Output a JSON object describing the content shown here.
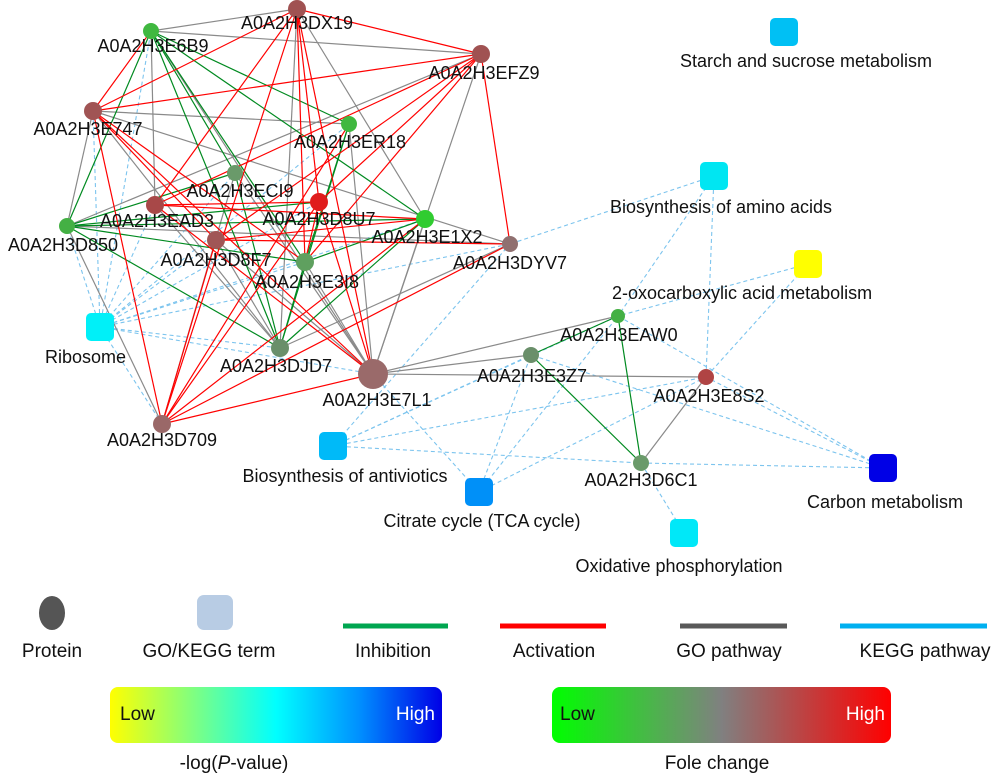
{
  "proteins": [
    {
      "id": "A0A2H3DX19",
      "color": "#a05252"
    },
    {
      "id": "A0A2H3E6B9",
      "color": "#40b840"
    },
    {
      "id": "A0A2H3EFZ9",
      "color": "#a05252"
    },
    {
      "id": "A0A2H3E747",
      "color": "#a05454"
    },
    {
      "id": "A0A2H3ER18",
      "color": "#40b840"
    },
    {
      "id": "A0A2H3ECI9",
      "color": "#6a9a6a"
    },
    {
      "id": "A0A2H3D8U7",
      "color": "#e01c1c"
    },
    {
      "id": "A0A2H3EAD3",
      "color": "#a84848"
    },
    {
      "id": "A0A2H3D850",
      "color": "#44b044"
    },
    {
      "id": "A0A2H3E1X2",
      "color": "#30cc30"
    },
    {
      "id": "A0A2H3D8F7",
      "color": "#a05656"
    },
    {
      "id": "A0A2H3DYV7",
      "color": "#907070"
    },
    {
      "id": "A0A2H3E3I8",
      "color": "#5fa05f"
    },
    {
      "id": "A0A2H3DJD7",
      "color": "#6a8f6a"
    },
    {
      "id": "A0A2H3E7L1",
      "color": "#9a6a6a"
    },
    {
      "id": "A0A2H3D709",
      "color": "#9a6868"
    },
    {
      "id": "A0A2H3EAW0",
      "color": "#44b044"
    },
    {
      "id": "A0A2H3E3Z7",
      "color": "#6a8f6a"
    },
    {
      "id": "A0A2H3E8S2",
      "color": "#b04444"
    },
    {
      "id": "A0A2H3D6C1",
      "color": "#6a9a6a"
    }
  ],
  "terms": [
    {
      "id": "Starch and sucrose metabolism",
      "color": "#00c0f4"
    },
    {
      "id": "Biosynthesis of amino acids",
      "color": "#00e6f2"
    },
    {
      "id": "2-oxocarboxylic acid metabolism",
      "color": "#ffff00"
    },
    {
      "id": "Ribosome",
      "color": "#00f0f8"
    },
    {
      "id": "Biosynthesis of antiviotics",
      "color": "#00baf8"
    },
    {
      "id": "Citrate cycle (TCA cycle)",
      "color": "#0090f8"
    },
    {
      "id": "Oxidative phosphorylation",
      "color": "#00e8f8"
    },
    {
      "id": "Carbon metabolism",
      "color": "#0000e6"
    }
  ],
  "edges": {
    "activation": [
      [
        "A0A2H3DX19",
        "A0A2H3E747"
      ],
      [
        "A0A2H3DX19",
        "A0A2H3EAD3"
      ],
      [
        "A0A2H3DX19",
        "A0A2H3D8U7"
      ],
      [
        "A0A2H3DX19",
        "A0A2H3E7L1"
      ],
      [
        "A0A2H3DX19",
        "A0A2H3EFZ9"
      ],
      [
        "A0A2H3DX19",
        "A0A2H3E3I8"
      ],
      [
        "A0A2H3EFZ9",
        "A0A2H3E747"
      ],
      [
        "A0A2H3EFZ9",
        "A0A2H3D8F7"
      ],
      [
        "A0A2H3EFZ9",
        "A0A2H3DYV7"
      ],
      [
        "A0A2H3EFZ9",
        "A0A2H3D8U7"
      ],
      [
        "A0A2H3EFZ9",
        "A0A2H3E3I8"
      ],
      [
        "A0A2H3EFZ9",
        "A0A2H3EAD3"
      ],
      [
        "A0A2H3E747",
        "A0A2H3D8F7"
      ],
      [
        "A0A2H3E747",
        "A0A2H3E3I8"
      ],
      [
        "A0A2H3E747",
        "A0A2H3D709"
      ],
      [
        "A0A2H3E747",
        "A0A2H3E7L1"
      ],
      [
        "A0A2H3E6B9",
        "A0A2H3E747"
      ],
      [
        "A0A2H3EAD3",
        "A0A2H3D8U7"
      ],
      [
        "A0A2H3EAD3",
        "A0A2H3E1X2"
      ],
      [
        "A0A2H3EAD3",
        "A0A2H3E7L1"
      ],
      [
        "A0A2H3D8F7",
        "A0A2H3D709"
      ],
      [
        "A0A2H3D8F7",
        "A0A2H3E1X2"
      ],
      [
        "A0A2H3D8F7",
        "A0A2H3DYV7"
      ],
      [
        "A0A2H3D709",
        "A0A2H3D8U7"
      ],
      [
        "A0A2H3D709",
        "A0A2H3E1X2"
      ],
      [
        "A0A2H3D709",
        "A0A2H3ER18"
      ],
      [
        "A0A2H3D709",
        "A0A2H3E7L1"
      ],
      [
        "A0A2H3D709",
        "A0A2H3DYV7"
      ],
      [
        "A0A2H3D709",
        "A0A2H3DX19"
      ],
      [
        "A0A2H3D8U7",
        "A0A2H3E3I8"
      ],
      [
        "A0A2H3D8U7",
        "A0A2H3E7L1"
      ]
    ],
    "inhibition": [
      [
        "A0A2H3E6B9",
        "A0A2H3D850"
      ],
      [
        "A0A2H3E6B9",
        "A0A2H3ECI9"
      ],
      [
        "A0A2H3E6B9",
        "A0A2H3E3I8"
      ],
      [
        "A0A2H3E6B9",
        "A0A2H3DJD7"
      ],
      [
        "A0A2H3E6B9",
        "A0A2H3E1X2"
      ],
      [
        "A0A2H3E6B9",
        "A0A2H3ER18"
      ],
      [
        "A0A2H3D850",
        "A0A2H3E1X2"
      ],
      [
        "A0A2H3D850",
        "A0A2H3ECI9"
      ],
      [
        "A0A2H3D850",
        "A0A2H3DJD7"
      ],
      [
        "A0A2H3D850",
        "A0A2H3E3I8"
      ],
      [
        "A0A2H3D850",
        "A0A2H3D8U7"
      ],
      [
        "A0A2H3ER18",
        "A0A2H3E3I8"
      ],
      [
        "A0A2H3ER18",
        "A0A2H3DJD7"
      ],
      [
        "A0A2H3ECI9",
        "A0A2H3DJD7"
      ],
      [
        "A0A2H3E1X2",
        "A0A2H3DJD7"
      ],
      [
        "A0A2H3E1X2",
        "A0A2H3E3I8"
      ],
      [
        "A0A2H3E3I8",
        "A0A2H3DJD7"
      ],
      [
        "A0A2H3EAW0",
        "A0A2H3E3Z7"
      ],
      [
        "A0A2H3EAW0",
        "A0A2H3D6C1"
      ],
      [
        "A0A2H3E3Z7",
        "A0A2H3D6C1"
      ]
    ],
    "go": [
      [
        "A0A2H3DX19",
        "A0A2H3E6B9"
      ],
      [
        "A0A2H3E6B9",
        "A0A2H3EFZ9"
      ],
      [
        "A0A2H3E6B9",
        "A0A2H3EAD3"
      ],
      [
        "A0A2H3E6B9",
        "A0A2H3E7L1"
      ],
      [
        "A0A2H3E747",
        "A0A2H3D850"
      ],
      [
        "A0A2H3E747",
        "A0A2H3DYV7"
      ],
      [
        "A0A2H3E747",
        "A0A2H3ER18"
      ],
      [
        "A0A2H3E747",
        "A0A2H3DJD7"
      ],
      [
        "A0A2H3D850",
        "A0A2H3D709"
      ],
      [
        "A0A2H3D850",
        "A0A2H3DYV7"
      ],
      [
        "A0A2H3EAD3",
        "A0A2H3DJD7"
      ],
      [
        "A0A2H3D8F7",
        "A0A2H3E7L1"
      ],
      [
        "A0A2H3ECI9",
        "A0A2H3E7L1"
      ],
      [
        "A0A2H3E3I8",
        "A0A2H3E7L1"
      ],
      [
        "A0A2H3ER18",
        "A0A2H3E7L1"
      ],
      [
        "A0A2H3DX19",
        "A0A2H3E1X2"
      ],
      [
        "A0A2H3DX19",
        "A0A2H3DJD7"
      ],
      [
        "A0A2H3EFZ9",
        "A0A2H3E7L1"
      ],
      [
        "A0A2H3D709",
        "A0A2H3ECI9"
      ],
      [
        "A0A2H3DYV7",
        "A0A2H3DJD7"
      ],
      [
        "A0A2H3E1X2",
        "A0A2H3E7L1"
      ],
      [
        "A0A2H3EFZ9",
        "A0A2H3D850"
      ],
      [
        "A0A2H3D8F7",
        "A0A2H3DJD7"
      ],
      [
        "A0A2H3E7L1",
        "A0A2H3E3Z7"
      ],
      [
        "A0A2H3E7L1",
        "A0A2H3EAW0"
      ],
      [
        "A0A2H3E7L1",
        "A0A2H3E8S2"
      ],
      [
        "A0A2H3E8S2",
        "A0A2H3D6C1"
      ]
    ],
    "kegg": [
      [
        "Ribosome",
        "A0A2H3D850"
      ],
      [
        "Ribosome",
        "A0A2H3E747"
      ],
      [
        "Ribosome",
        "A0A2H3E6B9"
      ],
      [
        "Ribosome",
        "A0A2H3EAD3"
      ],
      [
        "Ribosome",
        "A0A2H3D8F7"
      ],
      [
        "Ribosome",
        "A0A2H3ECI9"
      ],
      [
        "Ribosome",
        "A0A2H3D8U7"
      ],
      [
        "Ribosome",
        "A0A2H3E3I8"
      ],
      [
        "Ribosome",
        "A0A2H3E1X2"
      ],
      [
        "Ribosome",
        "A0A2H3ER18"
      ],
      [
        "Ribosome",
        "A0A2H3DJD7"
      ],
      [
        "Ribosome",
        "A0A2H3E7L1"
      ],
      [
        "Ribosome",
        "A0A2H3D709"
      ],
      [
        "Ribosome",
        "A0A2H3DYV7"
      ],
      [
        "Biosynthesis of amino acids",
        "A0A2H3EAW0"
      ],
      [
        "Biosynthesis of amino acids",
        "A0A2H3E8S2"
      ],
      [
        "Biosynthesis of amino acids",
        "A0A2H3DYV7"
      ],
      [
        "2-oxocarboxylic acid metabolism",
        "A0A2H3EAW0"
      ],
      [
        "2-oxocarboxylic acid metabolism",
        "A0A2H3E8S2"
      ],
      [
        "Biosynthesis of antiviotics",
        "A0A2H3E3Z7"
      ],
      [
        "Biosynthesis of antiviotics",
        "A0A2H3EAW0"
      ],
      [
        "Biosynthesis of antiviotics",
        "A0A2H3E8S2"
      ],
      [
        "Biosynthesis of antiviotics",
        "A0A2H3DYV7"
      ],
      [
        "Biosynthesis of antiviotics",
        "A0A2H3D6C1"
      ],
      [
        "Citrate cycle (TCA cycle)",
        "A0A2H3E3Z7"
      ],
      [
        "Citrate cycle (TCA cycle)",
        "A0A2H3E8S2"
      ],
      [
        "Citrate cycle (TCA cycle)",
        "A0A2H3EAW0"
      ],
      [
        "Citrate cycle (TCA cycle)",
        "A0A2H3E7L1"
      ],
      [
        "Oxidative phosphorylation",
        "A0A2H3D6C1"
      ],
      [
        "Carbon metabolism",
        "A0A2H3E8S2"
      ],
      [
        "Carbon metabolism",
        "A0A2H3E3Z7"
      ],
      [
        "Carbon metabolism",
        "A0A2H3EAW0"
      ],
      [
        "Carbon metabolism",
        "A0A2H3D6C1"
      ]
    ]
  },
  "edge_colors": {
    "activation": "#ff0000",
    "inhibition": "#008a20",
    "go": "#8a8a8a",
    "kegg": "#7cc4ee"
  },
  "legend": {
    "protein": "Protein",
    "term": "GO/KEGG term",
    "inhibition": "Inhibition",
    "activation": "Activation",
    "go_pathway": "GO pathway",
    "kegg_pathway": "KEGG pathway",
    "pvalue_low": "Low",
    "pvalue_high": "High",
    "pvalue_caption_pre": "-log(",
    "pvalue_caption_italic": "P",
    "pvalue_caption_post": "-value)",
    "fc_low": "Low",
    "fc_high": "High",
    "fc_caption": "Fole change"
  }
}
